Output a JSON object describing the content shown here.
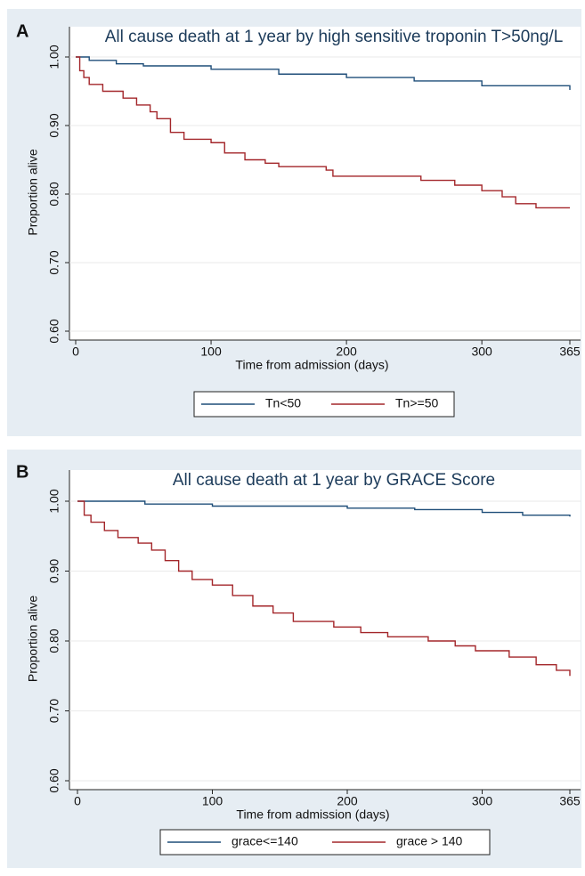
{
  "chart_data": [
    {
      "type": "step",
      "panel": "A",
      "title": "All cause death at 1 year by high sensitive troponin T>50ng/L",
      "xlabel": "Time from admission (days)",
      "ylabel": "Proportion alive",
      "xlim": [
        0,
        365
      ],
      "ylim": [
        0.6,
        1.0
      ],
      "xticks": [
        0,
        100,
        200,
        300,
        365
      ],
      "yticks": [
        {
          "value": 0.6,
          "label": "0.60"
        },
        {
          "value": 0.7,
          "label": "0.70"
        },
        {
          "value": 0.8,
          "label": "0.80"
        },
        {
          "value": 0.9,
          "label": "0.90"
        },
        {
          "value": 1.0,
          "label": "1.00"
        }
      ],
      "grid": true,
      "legend": "bottom",
      "series": [
        {
          "name": "Tn<50",
          "color": "#1f4e79",
          "x": [
            0,
            10,
            30,
            50,
            100,
            150,
            200,
            250,
            300,
            365
          ],
          "values": [
            1.0,
            0.995,
            0.99,
            0.987,
            0.982,
            0.975,
            0.97,
            0.965,
            0.958,
            0.952
          ]
        },
        {
          "name": "Tn>=50",
          "color": "#a3262a",
          "x": [
            0,
            3,
            6,
            10,
            20,
            35,
            45,
            55,
            60,
            70,
            80,
            100,
            110,
            125,
            140,
            150,
            185,
            190,
            255,
            280,
            300,
            315,
            325,
            340,
            365
          ],
          "values": [
            1.0,
            0.98,
            0.97,
            0.96,
            0.95,
            0.94,
            0.93,
            0.92,
            0.91,
            0.89,
            0.88,
            0.875,
            0.86,
            0.85,
            0.845,
            0.84,
            0.835,
            0.826,
            0.82,
            0.813,
            0.805,
            0.796,
            0.786,
            0.78,
            0.78
          ]
        }
      ]
    },
    {
      "type": "step",
      "panel": "B",
      "title": "All cause death at 1 year by GRACE Score",
      "xlabel": "Time from admission (days)",
      "ylabel": "Proportion alive",
      "xlim": [
        0,
        365
      ],
      "ylim": [
        0.6,
        1.0
      ],
      "xticks": [
        0,
        100,
        200,
        300,
        365
      ],
      "yticks": [
        {
          "value": 0.6,
          "label": "0.60"
        },
        {
          "value": 0.7,
          "label": "0.70"
        },
        {
          "value": 0.8,
          "label": "0.80"
        },
        {
          "value": 0.9,
          "label": "0.90"
        },
        {
          "value": 1.0,
          "label": "1.00"
        }
      ],
      "grid": true,
      "legend": "bottom",
      "series": [
        {
          "name": "grace<=140",
          "color": "#1f4e79",
          "x": [
            0,
            50,
            100,
            200,
            250,
            300,
            330,
            365
          ],
          "values": [
            1.0,
            0.996,
            0.993,
            0.99,
            0.988,
            0.984,
            0.98,
            0.978
          ]
        },
        {
          "name": "grace > 140",
          "color": "#a3262a",
          "x": [
            0,
            5,
            10,
            20,
            30,
            45,
            55,
            65,
            75,
            85,
            100,
            115,
            130,
            145,
            160,
            190,
            210,
            230,
            260,
            280,
            295,
            320,
            340,
            355,
            365
          ],
          "values": [
            1.0,
            0.98,
            0.97,
            0.958,
            0.948,
            0.94,
            0.93,
            0.915,
            0.9,
            0.888,
            0.88,
            0.865,
            0.85,
            0.84,
            0.828,
            0.82,
            0.812,
            0.806,
            0.8,
            0.793,
            0.786,
            0.777,
            0.766,
            0.758,
            0.75
          ]
        }
      ]
    }
  ]
}
